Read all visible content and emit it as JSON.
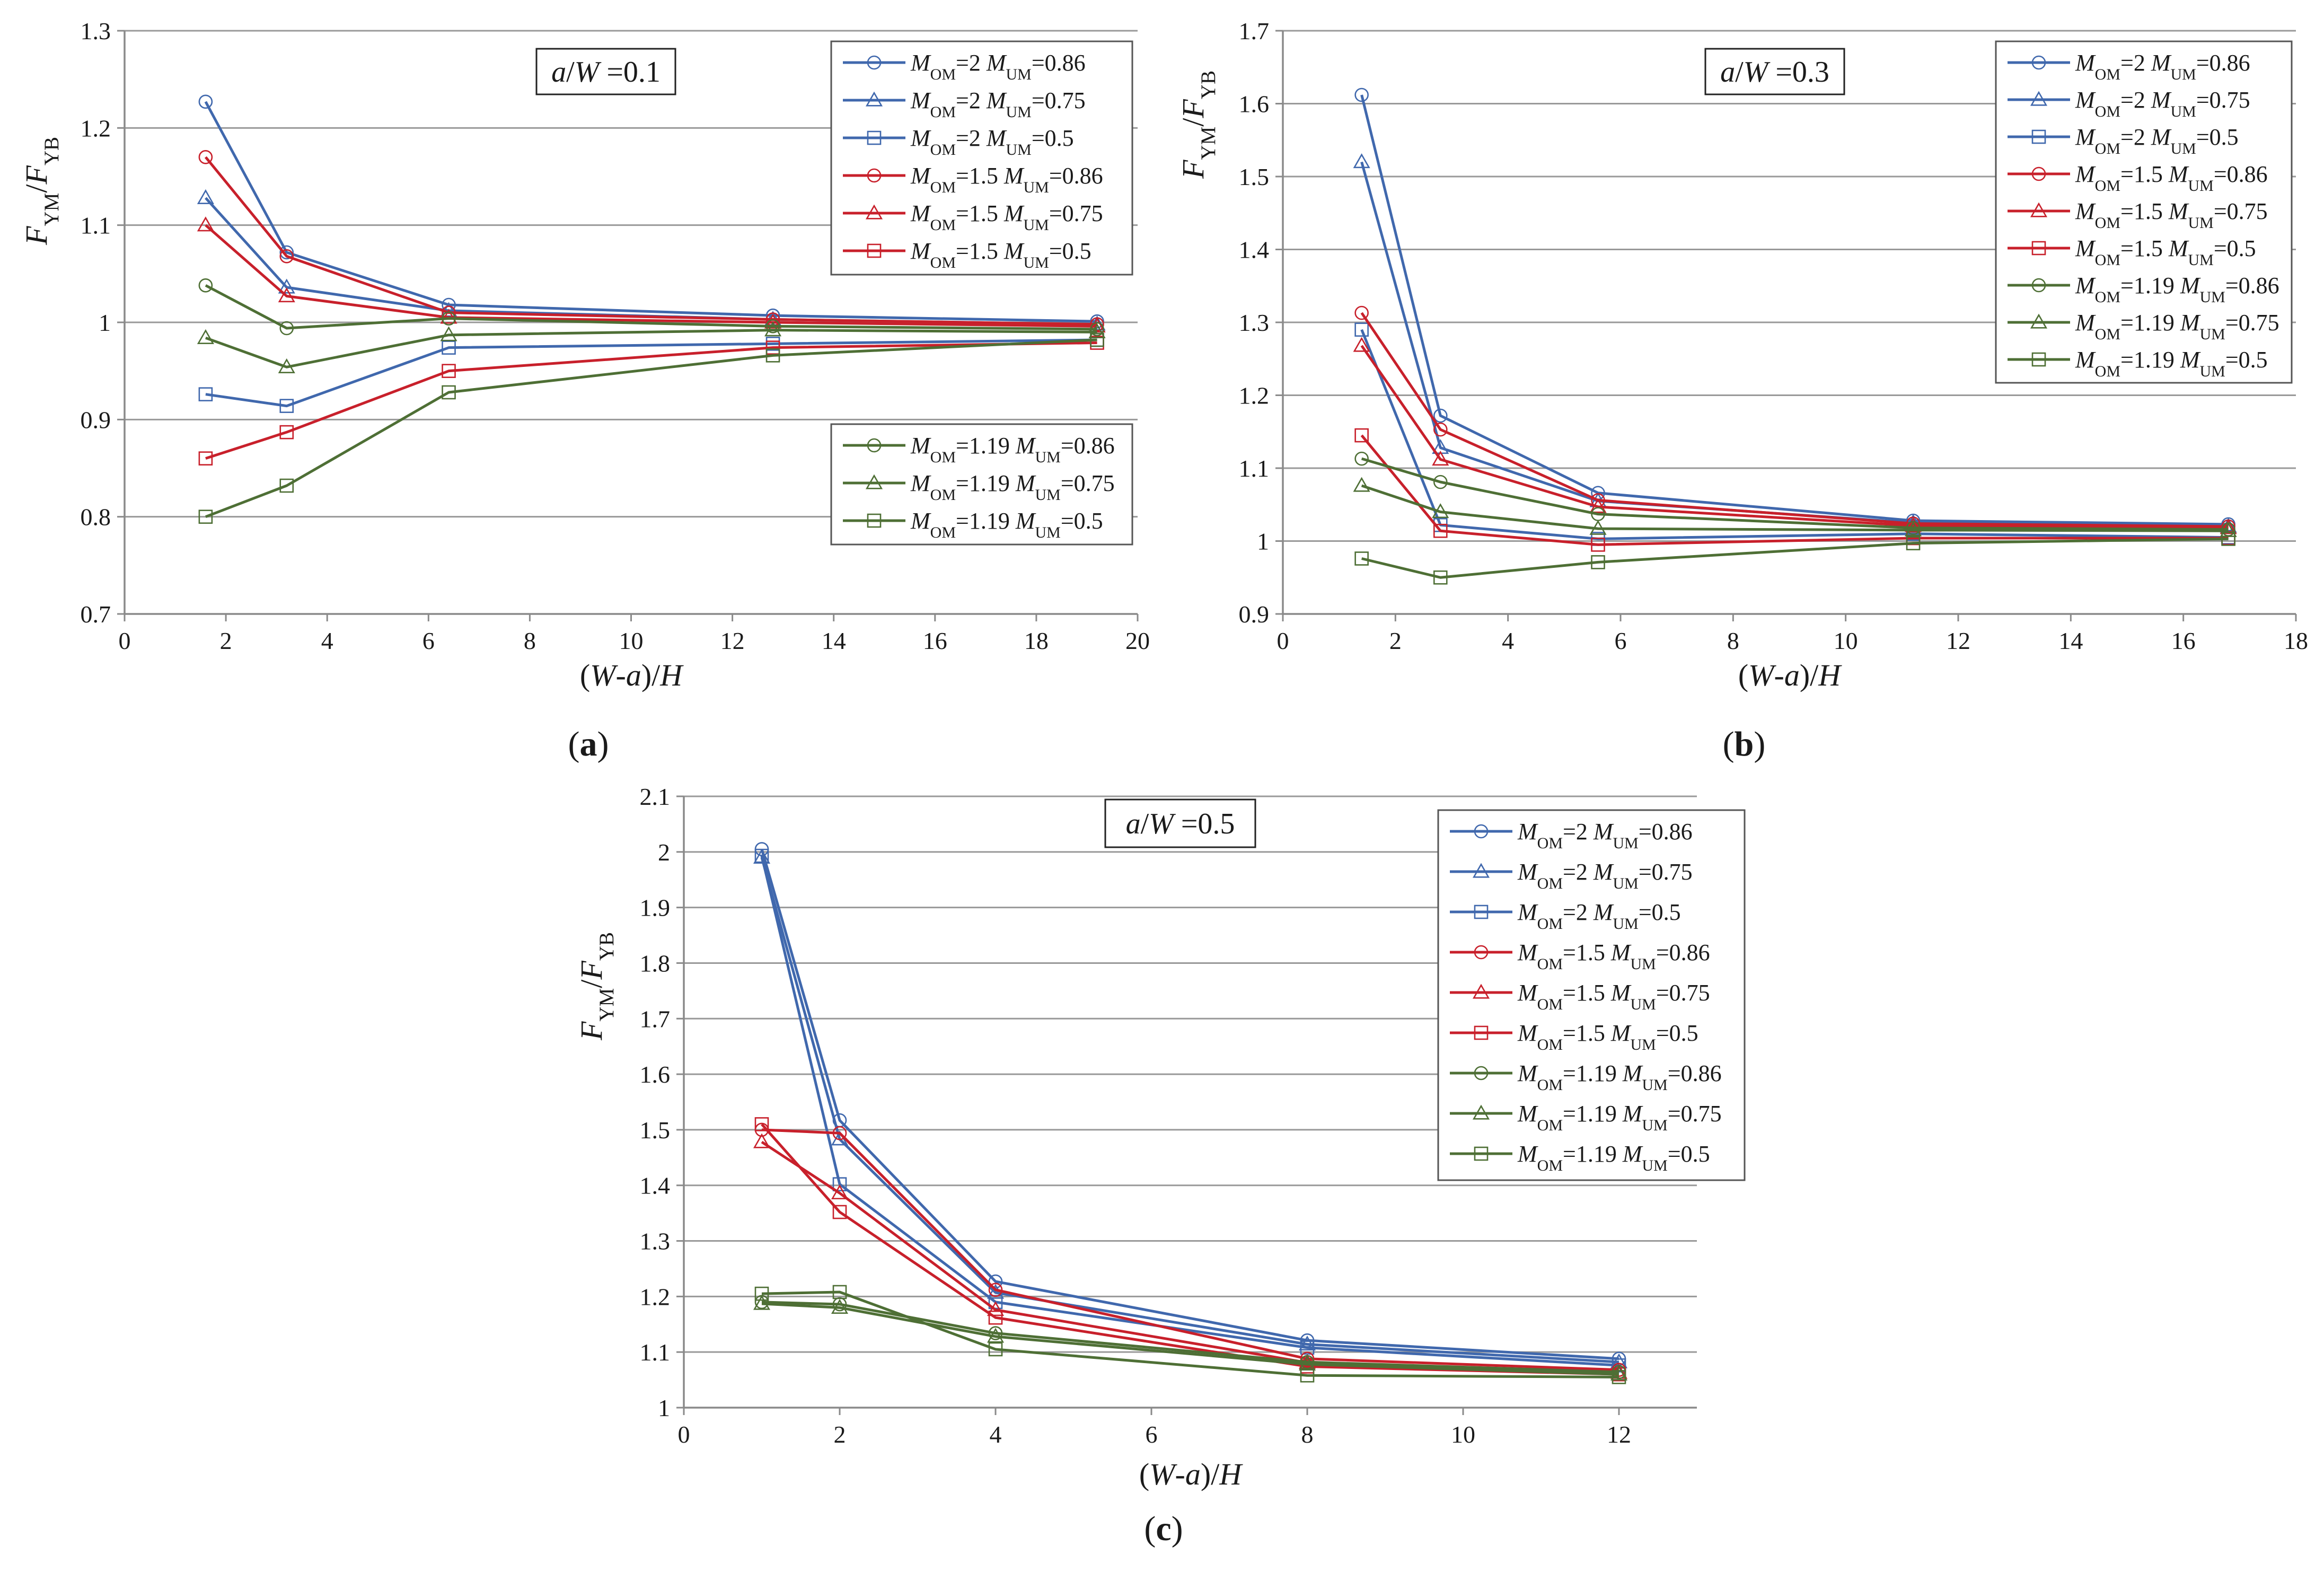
{
  "figure": {
    "colors": {
      "blue": "#4068ad",
      "red": "#c8202b",
      "green": "#4e6f35",
      "grid": "#999999",
      "axis": "#8a8a8a",
      "text": "#1a1a1a"
    }
  },
  "chart_data": [
    {
      "type": "line",
      "panel_label": "(a)",
      "title_a": "a",
      "title_w": "W",
      "title_rest": " =0.1",
      "xlabel_parts": [
        "(",
        "W",
        "-",
        "a",
        ")/",
        "H"
      ],
      "ylabel_parts": [
        "F",
        "YM",
        "/",
        "F",
        "YB"
      ],
      "xlim": [
        0,
        20
      ],
      "ylim": [
        0.7,
        1.3
      ],
      "xticks": [
        0,
        2,
        4,
        6,
        8,
        10,
        12,
        14,
        16,
        18,
        20
      ],
      "yticks": [
        0.7,
        0.8,
        0.9,
        1,
        1.1,
        1.2,
        1.3
      ],
      "ytick_labels": [
        "0.7",
        "0.8",
        "0.9",
        "1",
        "1.1",
        "1.2",
        "1.3"
      ],
      "x": [
        1.6,
        3.2,
        6.4,
        12.8,
        19.2
      ],
      "legend_groups": [
        [
          0,
          1,
          2,
          3,
          4,
          5
        ],
        [
          6,
          7,
          8
        ]
      ],
      "series": [
        {
          "name_parts": [
            "M",
            "OM",
            "=2 ",
            "M",
            "UM",
            "=0.86"
          ],
          "color": "blue",
          "marker": "circle",
          "values": [
            1.227,
            1.072,
            1.018,
            1.007,
            1.001
          ]
        },
        {
          "name_parts": [
            "M",
            "OM",
            "=2 ",
            "M",
            "UM",
            "=0.75"
          ],
          "color": "blue",
          "marker": "triangle",
          "values": [
            1.128,
            1.036,
            1.012,
            1.003,
            0.998
          ]
        },
        {
          "name_parts": [
            "M",
            "OM",
            "=2 ",
            "M",
            "UM",
            "=0.5"
          ],
          "color": "blue",
          "marker": "square",
          "values": [
            0.926,
            0.914,
            0.974,
            0.978,
            0.982
          ]
        },
        {
          "name_parts": [
            "M",
            "OM",
            "=1.5 ",
            "M",
            "UM",
            "=0.86"
          ],
          "color": "red",
          "marker": "circle",
          "values": [
            1.17,
            1.068,
            1.01,
            1.003,
            0.998
          ]
        },
        {
          "name_parts": [
            "M",
            "OM",
            "=1.5 ",
            "M",
            "UM",
            "=0.75"
          ],
          "color": "red",
          "marker": "triangle",
          "values": [
            1.1,
            1.027,
            1.005,
            1.0,
            0.996
          ]
        },
        {
          "name_parts": [
            "M",
            "OM",
            "=1.5 ",
            "M",
            "UM",
            "=0.5"
          ],
          "color": "red",
          "marker": "square",
          "values": [
            0.86,
            0.887,
            0.95,
            0.974,
            0.979
          ]
        },
        {
          "name_parts": [
            "M",
            "OM",
            "=1.19 ",
            "M",
            "UM",
            "=0.86"
          ],
          "color": "green",
          "marker": "circle",
          "values": [
            1.038,
            0.994,
            1.004,
            0.996,
            0.993
          ]
        },
        {
          "name_parts": [
            "M",
            "OM",
            "=1.19 ",
            "M",
            "UM",
            "=0.75"
          ],
          "color": "green",
          "marker": "triangle",
          "values": [
            0.984,
            0.954,
            0.987,
            0.992,
            0.99
          ]
        },
        {
          "name_parts": [
            "M",
            "OM",
            "=1.19 ",
            "M",
            "UM",
            "=0.5"
          ],
          "color": "green",
          "marker": "square",
          "values": [
            0.8,
            0.832,
            0.928,
            0.966,
            0.982
          ]
        }
      ]
    },
    {
      "type": "line",
      "panel_label": "(b)",
      "title_a": "a",
      "title_w": "W",
      "title_rest": " =0.3",
      "xlabel_parts": [
        "(",
        "W",
        "-",
        "a",
        ")/",
        "H"
      ],
      "ylabel_parts": [
        "F",
        "YM",
        "/",
        "F",
        "YB"
      ],
      "xlim": [
        0,
        18
      ],
      "ylim": [
        0.9,
        1.7
      ],
      "xticks": [
        0,
        2,
        4,
        6,
        8,
        10,
        12,
        14,
        16,
        18
      ],
      "yticks": [
        0.9,
        1,
        1.1,
        1.2,
        1.3,
        1.4,
        1.5,
        1.6,
        1.7
      ],
      "ytick_labels": [
        "0.9",
        "1",
        "1.1",
        "1.2",
        "1.3",
        "1.4",
        "1.5",
        "1.6",
        "1.7"
      ],
      "x": [
        1.4,
        2.8,
        5.6,
        11.2,
        16.8
      ],
      "legend_groups": [
        [
          0,
          1,
          2,
          3,
          4,
          5,
          6,
          7,
          8
        ]
      ],
      "series": [
        {
          "name_parts": [
            "M",
            "OM",
            "=2 ",
            "M",
            "UM",
            "=0.86"
          ],
          "color": "blue",
          "marker": "circle",
          "values": [
            1.612,
            1.172,
            1.066,
            1.028,
            1.023
          ]
        },
        {
          "name_parts": [
            "M",
            "OM",
            "=2 ",
            "M",
            "UM",
            "=0.75"
          ],
          "color": "blue",
          "marker": "triangle",
          "values": [
            1.52,
            1.128,
            1.055,
            1.025,
            1.02
          ]
        },
        {
          "name_parts": [
            "M",
            "OM",
            "=2 ",
            "M",
            "UM",
            "=0.5"
          ],
          "color": "blue",
          "marker": "square",
          "values": [
            1.29,
            1.022,
            1.003,
            1.01,
            1.005
          ]
        },
        {
          "name_parts": [
            "M",
            "OM",
            "=1.5 ",
            "M",
            "UM",
            "=0.86"
          ],
          "color": "red",
          "marker": "circle",
          "values": [
            1.313,
            1.153,
            1.056,
            1.024,
            1.02
          ]
        },
        {
          "name_parts": [
            "M",
            "OM",
            "=1.5 ",
            "M",
            "UM",
            "=0.75"
          ],
          "color": "red",
          "marker": "triangle",
          "values": [
            1.268,
            1.112,
            1.047,
            1.021,
            1.018
          ]
        },
        {
          "name_parts": [
            "M",
            "OM",
            "=1.5 ",
            "M",
            "UM",
            "=0.5"
          ],
          "color": "red",
          "marker": "square",
          "values": [
            1.145,
            1.014,
            0.995,
            1.004,
            1.004
          ]
        },
        {
          "name_parts": [
            "M",
            "OM",
            "=1.19 ",
            "M",
            "UM",
            "=0.86"
          ],
          "color": "green",
          "marker": "circle",
          "values": [
            1.113,
            1.081,
            1.037,
            1.018,
            1.016
          ]
        },
        {
          "name_parts": [
            "M",
            "OM",
            "=1.19 ",
            "M",
            "UM",
            "=0.75"
          ],
          "color": "green",
          "marker": "triangle",
          "values": [
            1.076,
            1.04,
            1.017,
            1.015,
            1.014
          ]
        },
        {
          "name_parts": [
            "M",
            "OM",
            "=1.19 ",
            "M",
            "UM",
            "=0.5"
          ],
          "color": "green",
          "marker": "square",
          "values": [
            0.976,
            0.95,
            0.971,
            0.997,
            1.003
          ]
        }
      ]
    },
    {
      "type": "line",
      "panel_label": "(c)",
      "title_a": "a",
      "title_w": "W",
      "title_rest": " =0.5",
      "xlabel_parts": [
        "(",
        "W",
        "-",
        "a",
        ")/",
        "H"
      ],
      "ylabel_parts": [
        "F",
        "YM",
        "/",
        "F",
        "YB"
      ],
      "xlim": [
        0,
        13
      ],
      "ylim": [
        1,
        2.1
      ],
      "xticks": [
        0,
        2,
        4,
        6,
        8,
        10,
        12
      ],
      "yticks": [
        1,
        1.1,
        1.2,
        1.3,
        1.4,
        1.5,
        1.6,
        1.7,
        1.8,
        1.9,
        2,
        2.1
      ],
      "ytick_labels": [
        "1",
        "1.1",
        "1.2",
        "1.3",
        "1.4",
        "1.5",
        "1.6",
        "1.7",
        "1.8",
        "1.9",
        "2",
        "2.1"
      ],
      "x": [
        1,
        2,
        4,
        8,
        12
      ],
      "legend_groups": [
        [
          0,
          1,
          2,
          3,
          4,
          5,
          6,
          7,
          8
        ]
      ],
      "series": [
        {
          "name_parts": [
            "M",
            "OM",
            "=2 ",
            "M",
            "UM",
            "=0.86"
          ],
          "color": "blue",
          "marker": "circle",
          "values": [
            2.005,
            1.517,
            1.227,
            1.121,
            1.088
          ]
        },
        {
          "name_parts": [
            "M",
            "OM",
            "=2 ",
            "M",
            "UM",
            "=0.75"
          ],
          "color": "blue",
          "marker": "triangle",
          "values": [
            1.99,
            1.483,
            1.207,
            1.114,
            1.082
          ]
        },
        {
          "name_parts": [
            "M",
            "OM",
            "=2 ",
            "M",
            "UM",
            "=0.5"
          ],
          "color": "blue",
          "marker": "square",
          "values": [
            1.993,
            1.402,
            1.19,
            1.108,
            1.076
          ]
        },
        {
          "name_parts": [
            "M",
            "OM",
            "=1.5 ",
            "M",
            "UM",
            "=0.86"
          ],
          "color": "red",
          "marker": "circle",
          "values": [
            1.5,
            1.494,
            1.212,
            1.088,
            1.068
          ]
        },
        {
          "name_parts": [
            "M",
            "OM",
            "=1.5 ",
            "M",
            "UM",
            "=0.75"
          ],
          "color": "red",
          "marker": "triangle",
          "values": [
            1.478,
            1.386,
            1.176,
            1.081,
            1.063
          ]
        },
        {
          "name_parts": [
            "M",
            "OM",
            "=1.5 ",
            "M",
            "UM",
            "=0.5"
          ],
          "color": "red",
          "marker": "square",
          "values": [
            1.51,
            1.352,
            1.162,
            1.074,
            1.06
          ]
        },
        {
          "name_parts": [
            "M",
            "OM",
            "=1.19 ",
            "M",
            "UM",
            "=0.86"
          ],
          "color": "green",
          "marker": "circle",
          "values": [
            1.19,
            1.186,
            1.134,
            1.082,
            1.064
          ]
        },
        {
          "name_parts": [
            "M",
            "OM",
            "=1.19 ",
            "M",
            "UM",
            "=0.75"
          ],
          "color": "green",
          "marker": "triangle",
          "values": [
            1.187,
            1.18,
            1.128,
            1.078,
            1.06
          ]
        },
        {
          "name_parts": [
            "M",
            "OM",
            "=1.19 ",
            "M",
            "UM",
            "=0.5"
          ],
          "color": "green",
          "marker": "square",
          "values": [
            1.205,
            1.208,
            1.105,
            1.058,
            1.055
          ]
        }
      ]
    }
  ]
}
